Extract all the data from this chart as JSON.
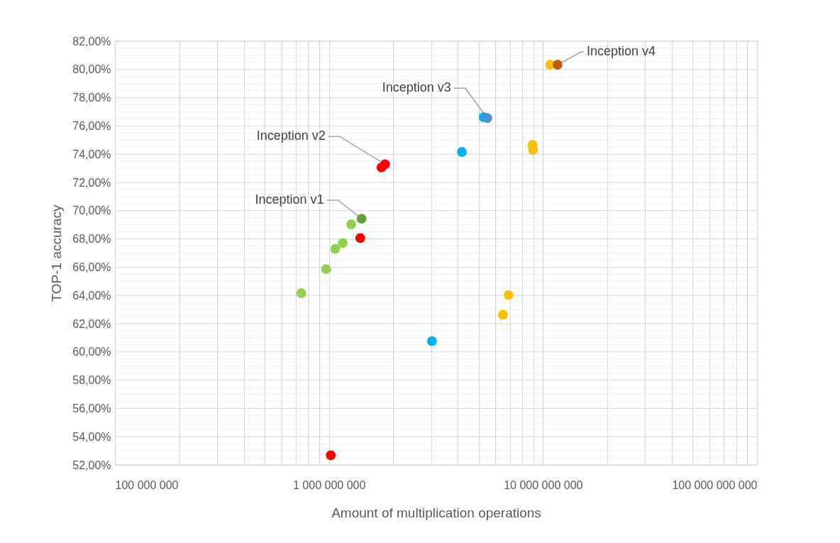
{
  "chart_data": {
    "type": "scatter",
    "xlabel": "Amount of multiplication operations",
    "ylabel": "TOP-1 accuracy",
    "log": "x",
    "grid": true,
    "marker": "circle",
    "xlim": [
      100000000,
      100000000000
    ],
    "ylim": [
      52,
      82
    ],
    "xticks": [
      {
        "value": 100000000,
        "label": "100 000 000"
      },
      {
        "value": 200000000,
        "label": null
      },
      {
        "value": 300000000,
        "label": null
      },
      {
        "value": 400000000,
        "label": null
      },
      {
        "value": 500000000,
        "label": null
      },
      {
        "value": 600000000,
        "label": null
      },
      {
        "value": 700000000,
        "label": null
      },
      {
        "value": 800000000,
        "label": null
      },
      {
        "value": 900000000,
        "label": null
      },
      {
        "value": 1000000000,
        "label": "1 000 000 000"
      },
      {
        "value": 2000000000,
        "label": null
      },
      {
        "value": 3000000000,
        "label": null
      },
      {
        "value": 4000000000,
        "label": null
      },
      {
        "value": 5000000000,
        "label": null
      },
      {
        "value": 6000000000,
        "label": null
      },
      {
        "value": 7000000000,
        "label": null
      },
      {
        "value": 8000000000,
        "label": null
      },
      {
        "value": 9000000000,
        "label": null
      },
      {
        "value": 10000000000,
        "label": "10 000 000 000"
      },
      {
        "value": 20000000000,
        "label": null
      },
      {
        "value": 30000000000,
        "label": null
      },
      {
        "value": 40000000000,
        "label": null
      },
      {
        "value": 50000000000,
        "label": null
      },
      {
        "value": 60000000000,
        "label": null
      },
      {
        "value": 70000000000,
        "label": null
      },
      {
        "value": 80000000000,
        "label": null
      },
      {
        "value": 90000000000,
        "label": null
      },
      {
        "value": 100000000000,
        "label": "100 000 000 000"
      }
    ],
    "yticks": [
      {
        "value": 52,
        "label": "52,00%"
      },
      {
        "value": 52.5,
        "label": null
      },
      {
        "value": 53,
        "label": null
      },
      {
        "value": 53.5,
        "label": null
      },
      {
        "value": 54,
        "label": "54,00%"
      },
      {
        "value": 54.5,
        "label": null
      },
      {
        "value": 55,
        "label": null
      },
      {
        "value": 55.5,
        "label": null
      },
      {
        "value": 56,
        "label": "56,00%"
      },
      {
        "value": 56.5,
        "label": null
      },
      {
        "value": 57,
        "label": null
      },
      {
        "value": 57.5,
        "label": null
      },
      {
        "value": 58,
        "label": "58,00%"
      },
      {
        "value": 58.5,
        "label": null
      },
      {
        "value": 59,
        "label": null
      },
      {
        "value": 59.5,
        "label": null
      },
      {
        "value": 60,
        "label": "60,00%"
      },
      {
        "value": 60.5,
        "label": null
      },
      {
        "value": 61,
        "label": null
      },
      {
        "value": 61.5,
        "label": null
      },
      {
        "value": 62,
        "label": "62,00%"
      },
      {
        "value": 62.5,
        "label": null
      },
      {
        "value": 63,
        "label": null
      },
      {
        "value": 63.5,
        "label": null
      },
      {
        "value": 64,
        "label": "64,00%"
      },
      {
        "value": 64.5,
        "label": null
      },
      {
        "value": 65,
        "label": null
      },
      {
        "value": 65.5,
        "label": null
      },
      {
        "value": 66,
        "label": "66,00%"
      },
      {
        "value": 66.5,
        "label": null
      },
      {
        "value": 67,
        "label": null
      },
      {
        "value": 67.5,
        "label": null
      },
      {
        "value": 68,
        "label": "68,00%"
      },
      {
        "value": 68.5,
        "label": null
      },
      {
        "value": 69,
        "label": null
      },
      {
        "value": 69.5,
        "label": null
      },
      {
        "value": 70,
        "label": "70,00%"
      },
      {
        "value": 70.5,
        "label": null
      },
      {
        "value": 71,
        "label": null
      },
      {
        "value": 71.5,
        "label": null
      },
      {
        "value": 72,
        "label": "72,00%"
      },
      {
        "value": 72.5,
        "label": null
      },
      {
        "value": 73,
        "label": null
      },
      {
        "value": 73.5,
        "label": null
      },
      {
        "value": 74,
        "label": "74,00%"
      },
      {
        "value": 74.5,
        "label": null
      },
      {
        "value": 75,
        "label": null
      },
      {
        "value": 75.5,
        "label": null
      },
      {
        "value": 76,
        "label": "76,00%"
      },
      {
        "value": 76.5,
        "label": null
      },
      {
        "value": 77,
        "label": null
      },
      {
        "value": 77.5,
        "label": null
      },
      {
        "value": 78,
        "label": "78,00%"
      },
      {
        "value": 78.5,
        "label": null
      },
      {
        "value": 79,
        "label": null
      },
      {
        "value": 79.5,
        "label": null
      },
      {
        "value": 80,
        "label": "80,00%"
      },
      {
        "value": 80.5,
        "label": null
      },
      {
        "value": 81,
        "label": null
      },
      {
        "value": 81.5,
        "label": null
      },
      {
        "value": 82,
        "label": "82,00%"
      }
    ],
    "series": [
      {
        "color": "#92d050",
        "x": [
          743000000,
          970000000,
          1070000000,
          1160000000,
          1270000000
        ],
        "values": [
          64.16,
          65.86,
          67.3,
          67.71,
          69.03
        ]
      },
      {
        "color": "#62a03a",
        "x": [
          1420000000
        ],
        "values": [
          69.43
        ]
      },
      {
        "color": "#ff0000",
        "x": [
          1400000000,
          1760000000,
          1830000000,
          1020000000
        ],
        "values": [
          68.06,
          73.06,
          73.29,
          52.69
        ]
      },
      {
        "color": "#00b0f0",
        "x": [
          3030000000,
          4180000000,
          5280000000
        ],
        "values": [
          60.76,
          74.16,
          76.62
        ]
      },
      {
        "color": "#4a90d9",
        "x": [
          5490000000
        ],
        "values": [
          76.56
        ]
      },
      {
        "color": "#ffc000",
        "x": [
          6500000000,
          6900000000,
          8930000000,
          8980000000,
          10800000000
        ],
        "values": [
          62.64,
          64.03,
          74.66,
          74.3,
          80.34
        ]
      },
      {
        "color": "#c55a11",
        "x": [
          11700000000
        ],
        "values": [
          80.33
        ]
      }
    ],
    "annotations": [
      {
        "text": "Inception v1",
        "x": 1420000000,
        "y": 69.43
      },
      {
        "text": "Inception v2",
        "x": 1830000000,
        "y": 73.29
      },
      {
        "text": "Inception v3",
        "x": 5490000000,
        "y": 76.56
      },
      {
        "text": "Inception v4",
        "x": 11700000000,
        "y": 80.33
      }
    ]
  }
}
